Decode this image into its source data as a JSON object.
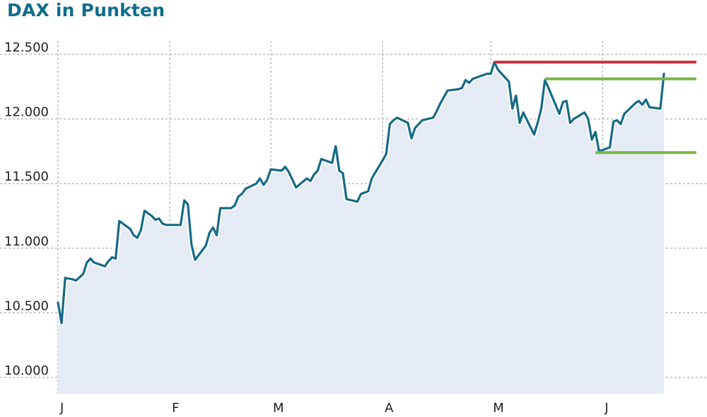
{
  "chart_data": {
    "type": "area",
    "title": "DAX in Punkten",
    "xlabel": "",
    "ylabel": "",
    "ylim": [
      9950,
      12600
    ],
    "y_ticks": [
      {
        "value": 10000,
        "label": "10.000"
      },
      {
        "value": 10500,
        "label": "10.500"
      },
      {
        "value": 11000,
        "label": "11.000"
      },
      {
        "value": 11500,
        "label": "11.500"
      },
      {
        "value": 12000,
        "label": "12.000"
      },
      {
        "value": 12500,
        "label": "12.500"
      }
    ],
    "x_ticks": [
      {
        "day": 1,
        "label": "J"
      },
      {
        "day": 32,
        "label": "F"
      },
      {
        "day": 60,
        "label": "M"
      },
      {
        "day": 91,
        "label": "A"
      },
      {
        "day": 121,
        "label": "M"
      },
      {
        "day": 152,
        "label": "J"
      }
    ],
    "xlim": [
      1,
      178
    ],
    "grid": true,
    "series": [
      {
        "points": [
          [
            1,
            10580
          ],
          [
            2,
            10420
          ],
          [
            3,
            10770
          ],
          [
            5,
            10760
          ],
          [
            6,
            10750
          ],
          [
            8,
            10800
          ],
          [
            9,
            10890
          ],
          [
            10,
            10920
          ],
          [
            11,
            10890
          ],
          [
            14,
            10860
          ],
          [
            15,
            10900
          ],
          [
            16,
            10930
          ],
          [
            17,
            10920
          ],
          [
            18,
            11210
          ],
          [
            20,
            11170
          ],
          [
            21,
            11150
          ],
          [
            22,
            11100
          ],
          [
            23,
            11080
          ],
          [
            24,
            11140
          ],
          [
            25,
            11290
          ],
          [
            27,
            11250
          ],
          [
            28,
            11220
          ],
          [
            29,
            11230
          ],
          [
            30,
            11190
          ],
          [
            31,
            11180
          ],
          [
            35,
            11180
          ],
          [
            36,
            11370
          ],
          [
            37,
            11340
          ],
          [
            38,
            11030
          ],
          [
            39,
            10910
          ],
          [
            42,
            11020
          ],
          [
            43,
            11120
          ],
          [
            44,
            11160
          ],
          [
            45,
            11100
          ],
          [
            46,
            11310
          ],
          [
            49,
            11310
          ],
          [
            50,
            11330
          ],
          [
            51,
            11400
          ],
          [
            52,
            11420
          ],
          [
            53,
            11460
          ],
          [
            56,
            11500
          ],
          [
            57,
            11540
          ],
          [
            58,
            11490
          ],
          [
            59,
            11530
          ],
          [
            60,
            11610
          ],
          [
            63,
            11600
          ],
          [
            64,
            11630
          ],
          [
            65,
            11590
          ],
          [
            66,
            11530
          ],
          [
            67,
            11470
          ],
          [
            70,
            11540
          ],
          [
            71,
            11520
          ],
          [
            72,
            11570
          ],
          [
            73,
            11600
          ],
          [
            74,
            11690
          ],
          [
            77,
            11660
          ],
          [
            78,
            11790
          ],
          [
            79,
            11600
          ],
          [
            80,
            11580
          ],
          [
            81,
            11380
          ],
          [
            84,
            11360
          ],
          [
            85,
            11420
          ],
          [
            86,
            11430
          ],
          [
            87,
            11440
          ],
          [
            88,
            11540
          ],
          [
            91,
            11680
          ],
          [
            92,
            11730
          ],
          [
            93,
            11960
          ],
          [
            94,
            11990
          ],
          [
            95,
            12010
          ],
          [
            98,
            11970
          ],
          [
            99,
            11850
          ],
          [
            100,
            11930
          ],
          [
            101,
            11960
          ],
          [
            102,
            11990
          ],
          [
            105,
            12010
          ],
          [
            106,
            12060
          ],
          [
            107,
            12120
          ],
          [
            108,
            12170
          ],
          [
            109,
            12220
          ],
          [
            112,
            12230
          ],
          [
            113,
            12240
          ],
          [
            114,
            12300
          ],
          [
            115,
            12280
          ],
          [
            116,
            12310
          ],
          [
            119,
            12340
          ],
          [
            120,
            12350
          ],
          [
            121,
            12350
          ],
          [
            122,
            12440
          ],
          [
            123,
            12380
          ],
          [
            126,
            12290
          ],
          [
            127,
            12080
          ],
          [
            128,
            12180
          ],
          [
            129,
            11970
          ],
          [
            130,
            12050
          ],
          [
            133,
            11880
          ],
          [
            134,
            11970
          ],
          [
            135,
            12080
          ],
          [
            136,
            12300
          ],
          [
            137,
            12240
          ],
          [
            140,
            12040
          ],
          [
            141,
            12130
          ],
          [
            142,
            12140
          ],
          [
            143,
            11970
          ],
          [
            144,
            12000
          ],
          [
            147,
            12050
          ],
          [
            148,
            12000
          ],
          [
            149,
            11840
          ],
          [
            150,
            11900
          ],
          [
            151,
            11750
          ],
          [
            154,
            11780
          ],
          [
            155,
            11980
          ],
          [
            156,
            11990
          ],
          [
            157,
            11960
          ],
          [
            158,
            12040
          ],
          [
            161,
            12120
          ],
          [
            162,
            12140
          ],
          [
            163,
            12110
          ],
          [
            164,
            12150
          ],
          [
            165,
            12090
          ],
          [
            168,
            12080
          ],
          [
            169,
            12350
          ]
        ]
      }
    ],
    "annotations": [
      {
        "type": "resistance-line",
        "color": "#d4323c",
        "y": 12440,
        "x_start": 122,
        "x_end": 178
      },
      {
        "type": "resistance-line",
        "color": "#7ab648",
        "y": 12310,
        "x_start": 136,
        "x_end": 178
      },
      {
        "type": "support-line",
        "color": "#7ab648",
        "y": 11740,
        "x_start": 150,
        "x_end": 178
      }
    ],
    "colors": {
      "line": "#146a86",
      "area": "#e5ebf4",
      "grid": "#9a9a9a",
      "title": "#0f6d8a"
    }
  }
}
